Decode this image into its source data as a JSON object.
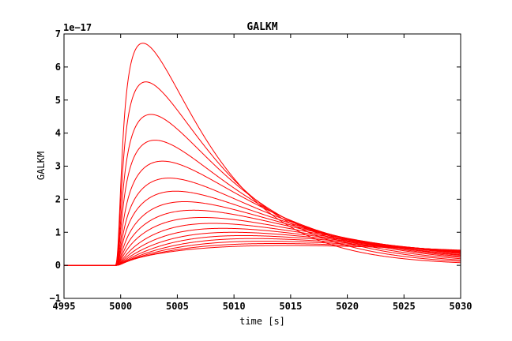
{
  "chart_data": {
    "type": "line",
    "title": "GALKM",
    "xlabel": "time [s]",
    "ylabel": "GALKM",
    "y_offset_label": "1e−17",
    "xlim": [
      4995,
      5030
    ],
    "ylim": [
      -1,
      7
    ],
    "x_ticks": [
      4995,
      5000,
      5005,
      5010,
      5015,
      5020,
      5025,
      5030
    ],
    "x_tick_labels": [
      "4995",
      "5000",
      "5005",
      "5010",
      "5015",
      "5020",
      "5025",
      "5030"
    ],
    "y_ticks": [
      -1,
      0,
      1,
      2,
      3,
      4,
      5,
      6,
      7
    ],
    "y_tick_labels": [
      "−1",
      "0",
      "1",
      "2",
      "3",
      "4",
      "5",
      "6",
      "7"
    ],
    "grid": false,
    "legend": "none",
    "line_color": "#ff0000",
    "series": [
      {
        "peak_time": 5001.7,
        "peak_value": 6.88,
        "value_at_5030": 0.08
      },
      {
        "peak_time": 5002.0,
        "peak_value": 5.65,
        "value_at_5030": 0.12
      },
      {
        "peak_time": 5002.5,
        "peak_value": 4.62,
        "value_at_5030": 0.16
      },
      {
        "peak_time": 5002.9,
        "peak_value": 3.82,
        "value_at_5030": 0.2
      },
      {
        "peak_time": 5003.6,
        "peak_value": 3.17,
        "value_at_5030": 0.24
      },
      {
        "peak_time": 5004.2,
        "peak_value": 2.65,
        "value_at_5030": 0.27
      },
      {
        "peak_time": 5004.8,
        "peak_value": 2.25,
        "value_at_5030": 0.3
      },
      {
        "peak_time": 5005.6,
        "peak_value": 1.93,
        "value_at_5030": 0.32
      },
      {
        "peak_time": 5006.4,
        "peak_value": 1.67,
        "value_at_5030": 0.35
      },
      {
        "peak_time": 5007.2,
        "peak_value": 1.45,
        "value_at_5030": 0.37
      },
      {
        "peak_time": 5008.1,
        "peak_value": 1.27,
        "value_at_5030": 0.38
      },
      {
        "peak_time": 5009.0,
        "peak_value": 1.12,
        "value_at_5030": 0.4
      },
      {
        "peak_time": 5009.9,
        "peak_value": 1.0,
        "value_at_5030": 0.41
      },
      {
        "peak_time": 5010.8,
        "peak_value": 0.9,
        "value_at_5030": 0.42
      },
      {
        "peak_time": 5011.7,
        "peak_value": 0.81,
        "value_at_5030": 0.43
      },
      {
        "peak_time": 5012.6,
        "peak_value": 0.73,
        "value_at_5030": 0.44
      },
      {
        "peak_time": 5013.6,
        "peak_value": 0.66,
        "value_at_5030": 0.45
      },
      {
        "peak_time": 5014.6,
        "peak_value": 0.6,
        "value_at_5030": 0.46
      }
    ]
  }
}
